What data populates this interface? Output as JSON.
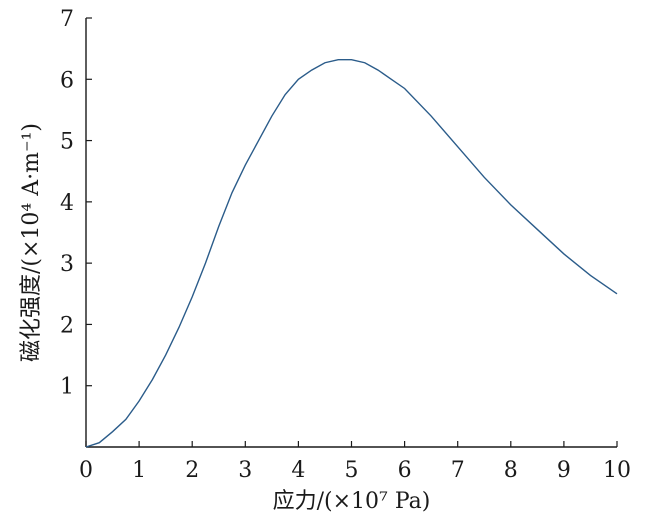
{
  "chart_data": {
    "type": "line",
    "title": "",
    "xlabel": "应力/(×10⁷ Pa)",
    "ylabel": "磁化强度/(×10⁴ A·m⁻¹)",
    "xlim": [
      0,
      10
    ],
    "ylim": [
      0,
      7
    ],
    "x_ticks": [
      0,
      1,
      2,
      3,
      4,
      5,
      6,
      7,
      8,
      9,
      10
    ],
    "y_ticks": [
      1,
      2,
      3,
      4,
      5,
      6,
      7
    ],
    "x_tick_labels": [
      "0",
      "1",
      "2",
      "3",
      "4",
      "5",
      "6",
      "7",
      "8",
      "9",
      "10"
    ],
    "y_tick_labels": [
      "1",
      "2",
      "3",
      "4",
      "5",
      "6",
      "7"
    ],
    "grid": false,
    "series_color": "#2b5c8a",
    "series": [
      {
        "x": [
          0,
          0.25,
          0.5,
          0.75,
          1.0,
          1.25,
          1.5,
          1.75,
          2.0,
          2.25,
          2.5,
          2.75,
          3.0,
          3.25,
          3.5,
          3.75,
          4.0,
          4.25,
          4.5,
          4.75,
          5.0,
          5.25,
          5.5,
          5.75,
          6.0,
          6.5,
          7.0,
          7.5,
          8.0,
          8.5,
          9.0,
          9.5,
          10.0
        ],
        "y": [
          0,
          0.07,
          0.25,
          0.45,
          0.75,
          1.1,
          1.5,
          1.95,
          2.45,
          3.0,
          3.6,
          4.15,
          4.6,
          5.0,
          5.4,
          5.75,
          6.0,
          6.15,
          6.27,
          6.32,
          6.32,
          6.27,
          6.15,
          6.0,
          5.85,
          5.4,
          4.9,
          4.4,
          3.95,
          3.55,
          3.15,
          2.8,
          2.5
        ]
      }
    ]
  }
}
